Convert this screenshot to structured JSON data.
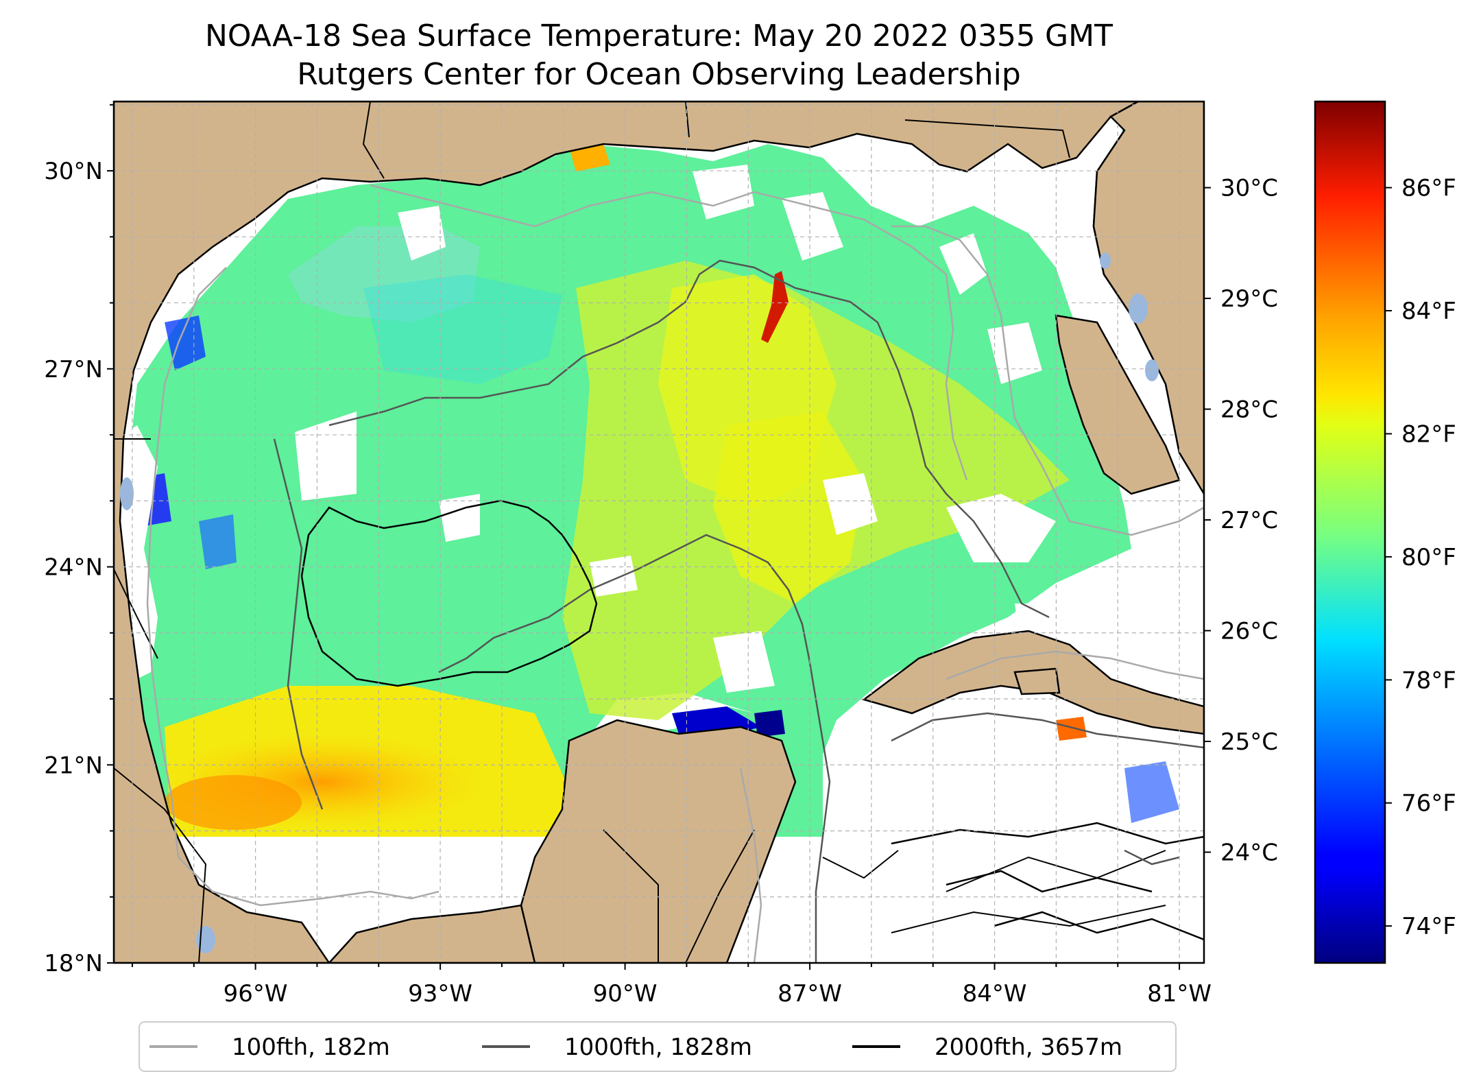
{
  "title": {
    "line1": "NOAA-18 Sea Surface Temperature: May 20 2022 0355 GMT",
    "line2": "Rutgers Center for Ocean Observing Leadership"
  },
  "map": {
    "lat_labels": [
      "30°N",
      "27°N",
      "24°N",
      "21°N",
      "18°N"
    ],
    "lon_labels": [
      "96°W",
      "93°W",
      "90°W",
      "87°W",
      "84°W",
      "81°W"
    ],
    "lon_range": [
      -98.3,
      -80.6
    ],
    "lat_range": [
      18.0,
      31.05
    ],
    "colors": {
      "land": "#d2b48c",
      "lakes": "#9ab8de",
      "coastline": "#000000",
      "gridline": "#b0b0b0",
      "no_data": "#ffffff"
    }
  },
  "colorbar": {
    "colormap": "jet",
    "celsius_labels": [
      "30°C",
      "29°C",
      "28°C",
      "27°C",
      "26°C",
      "25°C",
      "24°C"
    ],
    "fahrenheit_labels": [
      "86°F",
      "84°F",
      "82°F",
      "80°F",
      "78°F",
      "76°F",
      "74°F"
    ],
    "range_f": [
      73.4,
      87.4
    ]
  },
  "legend": {
    "items": [
      {
        "label": "100fth, 182m",
        "color": "#a9a9a9"
      },
      {
        "label": "1000fth, 1828m",
        "color": "#555555"
      },
      {
        "label": "2000fth, 3657m",
        "color": "#000000"
      }
    ]
  }
}
